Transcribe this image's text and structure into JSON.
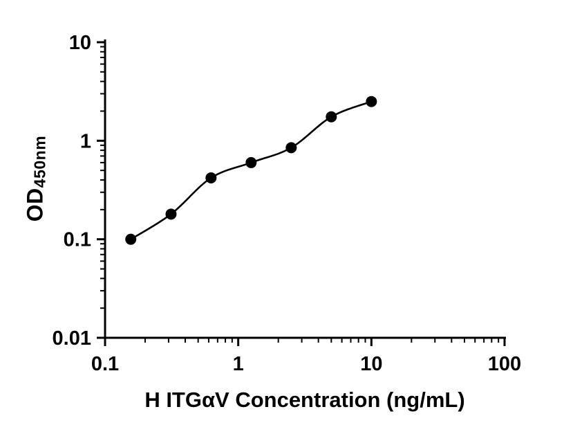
{
  "chart_data": {
    "type": "scatter",
    "fit_line": true,
    "title": "",
    "xlabel": "H ITGαV Concentration (ng/mL)",
    "ylabel_main": "OD",
    "ylabel_sub": "450nm",
    "x": [
      0.156,
      0.313,
      0.625,
      1.25,
      2.5,
      5,
      10
    ],
    "y": [
      0.1,
      0.18,
      0.42,
      0.6,
      0.85,
      1.75,
      2.5
    ],
    "xscale": "log",
    "yscale": "log",
    "xlim": [
      0.1,
      100
    ],
    "ylim": [
      0.01,
      10
    ],
    "x_ticks": [
      0.1,
      1,
      10,
      100
    ],
    "x_tick_labels": [
      "0.1",
      "1",
      "10",
      "100"
    ],
    "y_ticks": [
      0.01,
      0.1,
      1,
      10
    ],
    "y_tick_labels": [
      "0.01",
      "0.1",
      "1",
      "10"
    ],
    "grid": false,
    "legend": false,
    "marker_color": "#000000",
    "line_color": "#000000",
    "axis_color": "#000000",
    "background": "#ffffff"
  }
}
